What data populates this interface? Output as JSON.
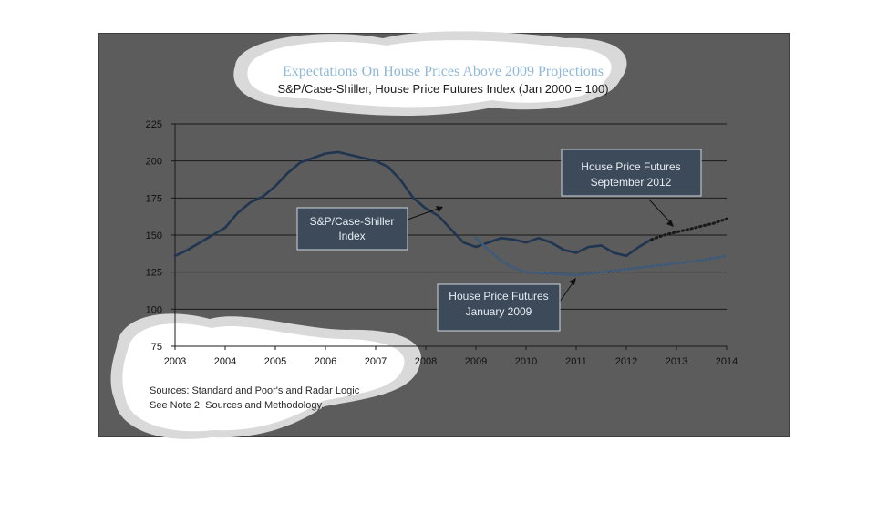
{
  "chart_data": {
    "type": "line",
    "title": "Expectations On House Prices Above 2009 Projections",
    "subtitle": "S&P/Case-Shiller, House Price Futures Index (Jan 2000 = 100)",
    "ylim": [
      75,
      225
    ],
    "yticks": [
      75,
      100,
      125,
      150,
      175,
      200,
      225
    ],
    "xlim": [
      2003,
      2014
    ],
    "xticks": [
      2003,
      2004,
      2005,
      2006,
      2007,
      2008,
      2009,
      2010,
      2011,
      2012,
      2013,
      2014
    ],
    "grid": true,
    "series": [
      {
        "name": "S&P/Case-Shiller Index",
        "style": "solid",
        "color": "#1f3550",
        "x": [
          2003,
          2003.25,
          2003.5,
          2003.75,
          2004,
          2004.25,
          2004.5,
          2004.75,
          2005,
          2005.25,
          2005.5,
          2005.75,
          2006,
          2006.25,
          2006.5,
          2006.75,
          2007,
          2007.25,
          2007.5,
          2007.75,
          2008,
          2008.25,
          2008.5,
          2008.75,
          2009,
          2009.25,
          2009.5,
          2009.75,
          2010,
          2010.25,
          2010.5,
          2010.75,
          2011,
          2011.25,
          2011.5,
          2011.75,
          2012,
          2012.25,
          2012.5
        ],
        "y": [
          136,
          140,
          145,
          150,
          155,
          165,
          172,
          176,
          183,
          192,
          199,
          202,
          205,
          206,
          204,
          202,
          200,
          196,
          187,
          175,
          168,
          163,
          154,
          145,
          142,
          145,
          148,
          147,
          145,
          148,
          145,
          140,
          138,
          142,
          143,
          138,
          136,
          142,
          147
        ]
      },
      {
        "name": "House Price Futures September 2012",
        "style": "dotted",
        "color": "#1a1a1a",
        "x": [
          2012.5,
          2012.75,
          2013,
          2013.25,
          2013.5,
          2013.75,
          2014
        ],
        "y": [
          147,
          150,
          152,
          154,
          156,
          158,
          161
        ]
      },
      {
        "name": "House Price Futures January 2009",
        "style": "dotted",
        "color": "#3e5a7a",
        "x": [
          2009,
          2009.25,
          2009.5,
          2009.75,
          2010,
          2010.5,
          2011,
          2011.5,
          2012,
          2012.5,
          2013,
          2013.5,
          2014
        ],
        "y": [
          148,
          140,
          133,
          128,
          125,
          124,
          123,
          125,
          127,
          129,
          131,
          133,
          136
        ]
      }
    ],
    "annotations": [
      {
        "line1": "S&P/Case-Shiller",
        "line2": "Index"
      },
      {
        "line1": "House Price Futures",
        "line2": "September 2012"
      },
      {
        "line1": "House Price Futures",
        "line2": "January 2009"
      }
    ],
    "sources": {
      "line1": "Sources:  Standard and Poor's and Radar Logic",
      "line2": "See Note 2, Sources and Methodology."
    }
  }
}
